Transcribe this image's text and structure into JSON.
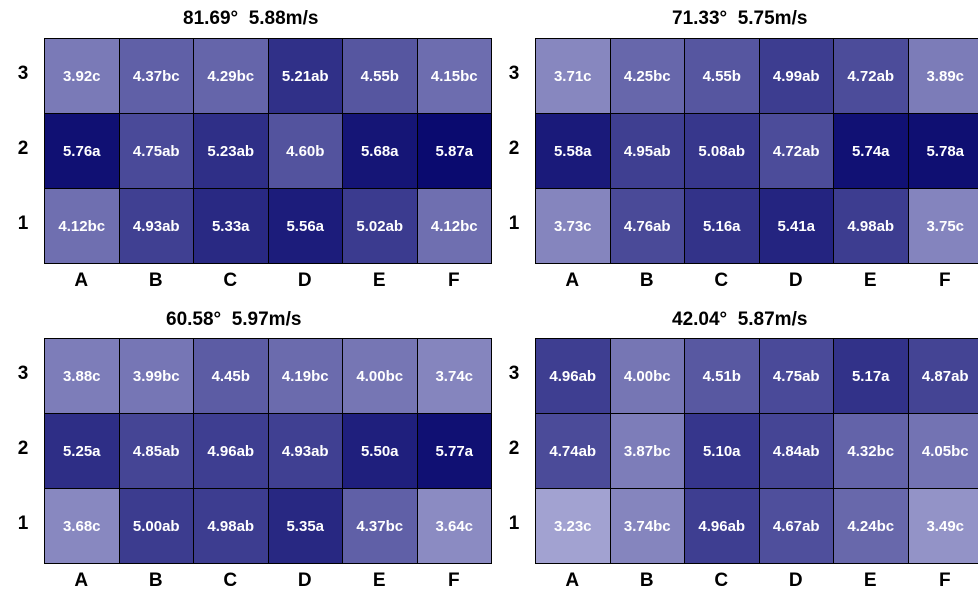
{
  "chart_data": [
    {
      "type": "heatmap",
      "title": "81.69°  5.88m/s",
      "columns": [
        "A",
        "B",
        "C",
        "D",
        "E",
        "F"
      ],
      "rows": [
        "3",
        "2",
        "1"
      ],
      "values": [
        [
          3.92,
          4.37,
          4.29,
          5.21,
          4.55,
          4.15
        ],
        [
          5.76,
          4.75,
          5.23,
          4.6,
          5.68,
          5.87
        ],
        [
          4.12,
          4.93,
          5.33,
          5.56,
          5.02,
          4.12
        ]
      ],
      "labels": [
        [
          "3.92c",
          "4.37bc",
          "4.29bc",
          "5.21ab",
          "4.55b",
          "4.15bc"
        ],
        [
          "5.76a",
          "4.75ab",
          "5.23ab",
          "4.60b",
          "5.68a",
          "5.87a"
        ],
        [
          "4.12bc",
          "4.93ab",
          "5.33a",
          "5.56a",
          "5.02ab",
          "4.12bc"
        ]
      ]
    },
    {
      "type": "heatmap",
      "title": "71.33°  5.75m/s",
      "columns": [
        "A",
        "B",
        "C",
        "D",
        "E",
        "F"
      ],
      "rows": [
        "3",
        "2",
        "1"
      ],
      "values": [
        [
          3.71,
          4.25,
          4.55,
          4.99,
          4.72,
          3.89
        ],
        [
          5.58,
          4.95,
          5.08,
          4.72,
          5.74,
          5.78
        ],
        [
          3.73,
          4.76,
          5.16,
          5.41,
          4.98,
          3.75
        ]
      ],
      "labels": [
        [
          "3.71c",
          "4.25bc",
          "4.55b",
          "4.99ab",
          "4.72ab",
          "3.89c"
        ],
        [
          "5.58a",
          "4.95ab",
          "5.08ab",
          "4.72ab",
          "5.74a",
          "5.78a"
        ],
        [
          "3.73c",
          "4.76ab",
          "5.16a",
          "5.41a",
          "4.98ab",
          "3.75c"
        ]
      ]
    },
    {
      "type": "heatmap",
      "title": "60.58°  5.97m/s",
      "columns": [
        "A",
        "B",
        "C",
        "D",
        "E",
        "F"
      ],
      "rows": [
        "3",
        "2",
        "1"
      ],
      "values": [
        [
          3.88,
          3.99,
          4.45,
          4.19,
          4.0,
          3.74
        ],
        [
          5.25,
          4.85,
          4.96,
          4.93,
          5.5,
          5.77
        ],
        [
          3.68,
          5.0,
          4.98,
          5.35,
          4.37,
          3.64
        ]
      ],
      "labels": [
        [
          "3.88c",
          "3.99bc",
          "4.45b",
          "4.19bc",
          "4.00bc",
          "3.74c"
        ],
        [
          "5.25a",
          "4.85ab",
          "4.96ab",
          "4.93ab",
          "5.50a",
          "5.77a"
        ],
        [
          "3.68c",
          "5.00ab",
          "4.98ab",
          "5.35a",
          "4.37bc",
          "3.64c"
        ]
      ]
    },
    {
      "type": "heatmap",
      "title": "42.04°  5.87m/s",
      "columns": [
        "A",
        "B",
        "C",
        "D",
        "E",
        "F"
      ],
      "rows": [
        "3",
        "2",
        "1"
      ],
      "values": [
        [
          4.96,
          4.0,
          4.51,
          4.75,
          5.17,
          4.87
        ],
        [
          4.74,
          3.87,
          5.1,
          4.84,
          4.32,
          4.05
        ],
        [
          3.23,
          3.74,
          4.96,
          4.67,
          4.24,
          3.49
        ]
      ],
      "labels": [
        [
          "4.96ab",
          "4.00bc",
          "4.51b",
          "4.75ab",
          "5.17a",
          "4.87ab"
        ],
        [
          "4.74ab",
          "3.87bc",
          "5.10a",
          "4.84ab",
          "4.32bc",
          "4.05bc"
        ],
        [
          "3.23c",
          "3.74bc",
          "4.96ab",
          "4.67ab",
          "4.24bc",
          "3.49c"
        ]
      ]
    }
  ],
  "colors": {
    "low": "#a4a4d2",
    "high": "#08086e",
    "border": "#000000",
    "cell_text": "#ffffff"
  }
}
